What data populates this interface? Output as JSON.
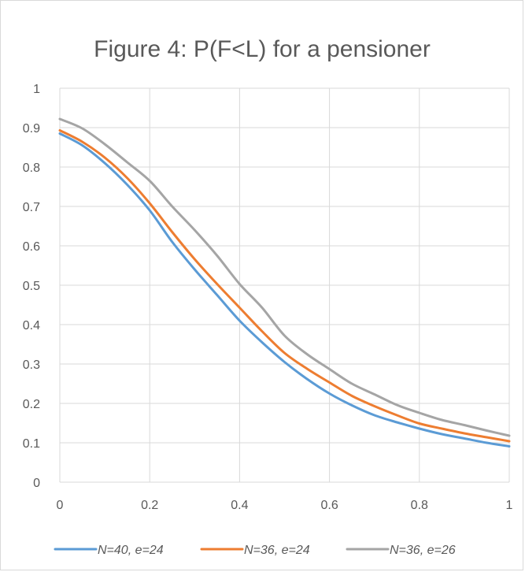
{
  "chart_data": {
    "type": "line",
    "title": "Figure 4: P(F<L) for a pensioner",
    "xlabel": "",
    "ylabel": "",
    "xlim": [
      0,
      1
    ],
    "ylim": [
      0,
      1
    ],
    "x_ticks": [
      "0",
      "0.2",
      "0.4",
      "0.6",
      "0.8",
      "1"
    ],
    "y_ticks": [
      "0",
      "0.1",
      "0.2",
      "0.3",
      "0.4",
      "0.5",
      "0.6",
      "0.7",
      "0.8",
      "0.9",
      "1"
    ],
    "grid": true,
    "legend_position": "bottom",
    "x": [
      0,
      0.05,
      0.1,
      0.15,
      0.2,
      0.25,
      0.3,
      0.35,
      0.4,
      0.45,
      0.5,
      0.55,
      0.6,
      0.65,
      0.7,
      0.75,
      0.8,
      0.85,
      0.9,
      0.95,
      1
    ],
    "series": [
      {
        "name": "N=40, e=24",
        "color": "#5B9BD5",
        "values": [
          0.885,
          0.855,
          0.81,
          0.755,
          0.69,
          0.61,
          0.54,
          0.475,
          0.41,
          0.355,
          0.305,
          0.262,
          0.225,
          0.195,
          0.17,
          0.152,
          0.136,
          0.122,
          0.111,
          0.1,
          0.091
        ]
      },
      {
        "name": "N=36, e=24",
        "color": "#ED7D31",
        "values": [
          0.893,
          0.864,
          0.824,
          0.772,
          0.708,
          0.635,
          0.566,
          0.503,
          0.443,
          0.383,
          0.328,
          0.288,
          0.253,
          0.219,
          0.193,
          0.17,
          0.149,
          0.136,
          0.124,
          0.114,
          0.104
        ]
      },
      {
        "name": "N=36, e=26",
        "color": "#A5A5A5",
        "values": [
          0.922,
          0.898,
          0.858,
          0.812,
          0.765,
          0.7,
          0.64,
          0.575,
          0.503,
          0.443,
          0.372,
          0.325,
          0.287,
          0.25,
          0.223,
          0.196,
          0.176,
          0.158,
          0.145,
          0.131,
          0.118
        ]
      }
    ]
  }
}
